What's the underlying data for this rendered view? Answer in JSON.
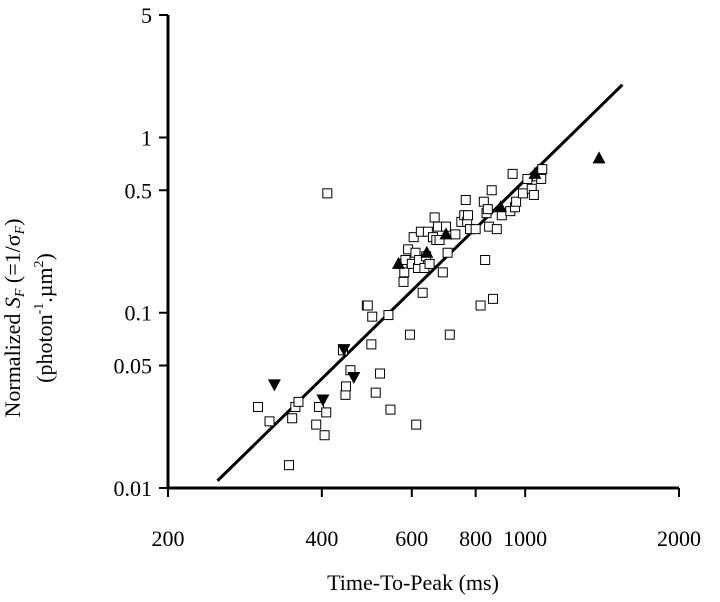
{
  "chart_data": {
    "type": "scatter",
    "x_scale": "log",
    "y_scale": "log",
    "xlim": [
      200,
      2000
    ],
    "ylim": [
      0.01,
      5
    ],
    "x_ticks": [
      {
        "value": 200,
        "label": "200"
      },
      {
        "value": 400,
        "label": "400"
      },
      {
        "value": 600,
        "label": "600"
      },
      {
        "value": 800,
        "label": "800"
      },
      {
        "value": 1000,
        "label": "1000"
      },
      {
        "value": 2000,
        "label": "2000"
      }
    ],
    "y_ticks": [
      {
        "value": 0.01,
        "label": "0.01"
      },
      {
        "value": 0.05,
        "label": "0.05"
      },
      {
        "value": 0.1,
        "label": "0.1"
      },
      {
        "value": 0.5,
        "label": "0.5"
      },
      {
        "value": 1,
        "label": "1"
      },
      {
        "value": 5,
        "label": "5"
      }
    ],
    "xlabel": "Time-To-Peak (ms)",
    "ylabel": {
      "prefix": "Normalized ",
      "s": "S",
      "s_sub": "F",
      "mid": " (=1/σ",
      "sigma_sub": "F",
      "close": ")",
      "line2_open": "(photon",
      "line2_sup1": "-1",
      "line2_mid": ".µm",
      "line2_sup2": "2",
      "line2_close": ")"
    },
    "grid": false,
    "legend": false,
    "series": [
      {
        "marker": "open-square",
        "points": [
          [
            300,
            0.029
          ],
          [
            316,
            0.024
          ],
          [
            345,
            0.0135
          ],
          [
            350,
            0.025
          ],
          [
            355,
            0.029
          ],
          [
            360,
            0.031
          ],
          [
            390,
            0.023
          ],
          [
            395,
            0.029
          ],
          [
            405,
            0.02
          ],
          [
            408,
            0.027
          ],
          [
            410,
            0.48
          ],
          [
            440,
            0.061
          ],
          [
            445,
            0.034
          ],
          [
            446,
            0.038
          ],
          [
            455,
            0.047
          ],
          [
            490,
            0.11
          ],
          [
            492,
            0.11
          ],
          [
            500,
            0.066
          ],
          [
            502,
            0.095
          ],
          [
            510,
            0.035
          ],
          [
            520,
            0.045
          ],
          [
            540,
            0.097
          ],
          [
            545,
            0.028
          ],
          [
            575,
            0.19
          ],
          [
            578,
            0.15
          ],
          [
            580,
            0.17
          ],
          [
            583,
            0.2
          ],
          [
            590,
            0.23
          ],
          [
            595,
            0.075
          ],
          [
            600,
            0.19
          ],
          [
            605,
            0.27
          ],
          [
            610,
            0.22
          ],
          [
            612,
            0.023
          ],
          [
            617,
            0.18
          ],
          [
            620,
            0.2
          ],
          [
            625,
            0.29
          ],
          [
            630,
            0.13
          ],
          [
            635,
            0.18
          ],
          [
            640,
            0.21
          ],
          [
            645,
            0.29
          ],
          [
            650,
            0.19
          ],
          [
            660,
            0.27
          ],
          [
            665,
            0.35
          ],
          [
            670,
            0.26
          ],
          [
            675,
            0.31
          ],
          [
            680,
            0.26
          ],
          [
            690,
            0.17
          ],
          [
            700,
            0.31
          ],
          [
            705,
            0.22
          ],
          [
            712,
            0.075
          ],
          [
            730,
            0.28
          ],
          [
            750,
            0.33
          ],
          [
            760,
            0.36
          ],
          [
            765,
            0.44
          ],
          [
            770,
            0.33
          ],
          [
            773,
            0.36
          ],
          [
            780,
            0.3
          ],
          [
            800,
            0.3
          ],
          [
            818,
            0.11
          ],
          [
            830,
            0.43
          ],
          [
            835,
            0.2
          ],
          [
            840,
            0.37
          ],
          [
            845,
            0.39
          ],
          [
            850,
            0.31
          ],
          [
            860,
            0.5
          ],
          [
            865,
            0.12
          ],
          [
            880,
            0.3
          ],
          [
            900,
            0.36
          ],
          [
            935,
            0.38
          ],
          [
            945,
            0.62
          ],
          [
            955,
            0.4
          ],
          [
            960,
            0.43
          ],
          [
            990,
            0.48
          ],
          [
            1010,
            0.58
          ],
          [
            1030,
            0.51
          ],
          [
            1040,
            0.47
          ],
          [
            1055,
            0.6
          ],
          [
            1075,
            0.58
          ],
          [
            1080,
            0.66
          ]
        ]
      },
      {
        "marker": "filled-triangle-up",
        "points": [
          [
            565,
            0.19
          ],
          [
            642,
            0.22
          ],
          [
            700,
            0.28
          ],
          [
            895,
            0.4
          ],
          [
            1045,
            0.62
          ],
          [
            1395,
            0.76
          ]
        ]
      },
      {
        "marker": "filled-triangle-down",
        "points": [
          [
            323,
            0.039
          ],
          [
            402,
            0.032
          ],
          [
            442,
            0.062
          ],
          [
            462,
            0.043
          ]
        ]
      }
    ],
    "trend_line": {
      "x": [
        250,
        1550
      ],
      "y": [
        0.011,
        2.0
      ]
    }
  }
}
